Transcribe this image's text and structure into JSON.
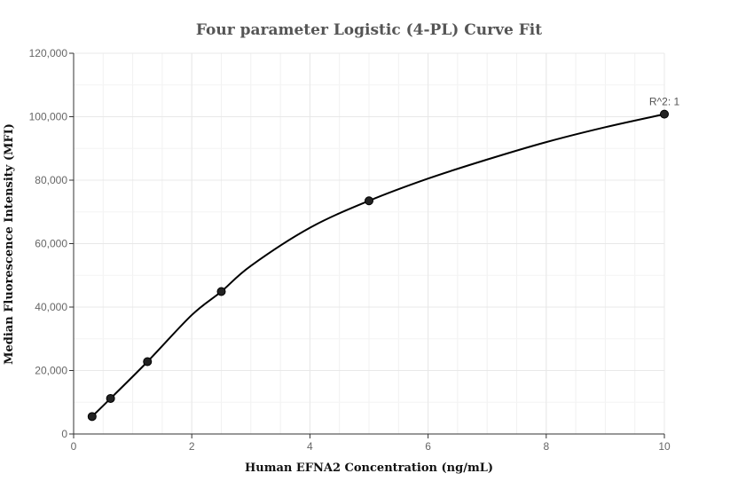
{
  "chart_data": {
    "type": "scatter",
    "title": "Four parameter Logistic (4-PL) Curve Fit",
    "xlabel": "Human EFNA2 Concentration (ng/mL)",
    "ylabel": "Median Fluorescence Intensity (MFI)",
    "xlim": [
      0,
      10
    ],
    "ylim": [
      0,
      120000
    ],
    "x_ticks": [
      0,
      2,
      4,
      6,
      8,
      10
    ],
    "y_ticks": [
      0,
      20000,
      40000,
      60000,
      80000,
      100000,
      120000
    ],
    "x_tick_labels": [
      "0",
      "2",
      "4",
      "6",
      "8",
      "10"
    ],
    "y_tick_labels": [
      "0",
      "20,000",
      "40,000",
      "60,000",
      "80,000",
      "100,000",
      "120,000"
    ],
    "grid": true,
    "points": {
      "x": [
        0.3125,
        0.625,
        1.25,
        2.5,
        5,
        10
      ],
      "y": [
        5500,
        11200,
        22800,
        44900,
        73500,
        100800
      ]
    },
    "fit_curve": {
      "x": [
        0.3125,
        0.625,
        1.25,
        2,
        2.5,
        3,
        4,
        5,
        6,
        7,
        8,
        9,
        10
      ],
      "y": [
        5500,
        11200,
        22800,
        37500,
        44900,
        53000,
        65000,
        73500,
        80500,
        86500,
        92000,
        96700,
        100800
      ]
    },
    "annotation": {
      "text": "R^2: 1",
      "x": 10,
      "y": 100800
    },
    "colors": {
      "points": "#222222",
      "curve": "#000000",
      "grid": "#e8e8e8"
    }
  }
}
